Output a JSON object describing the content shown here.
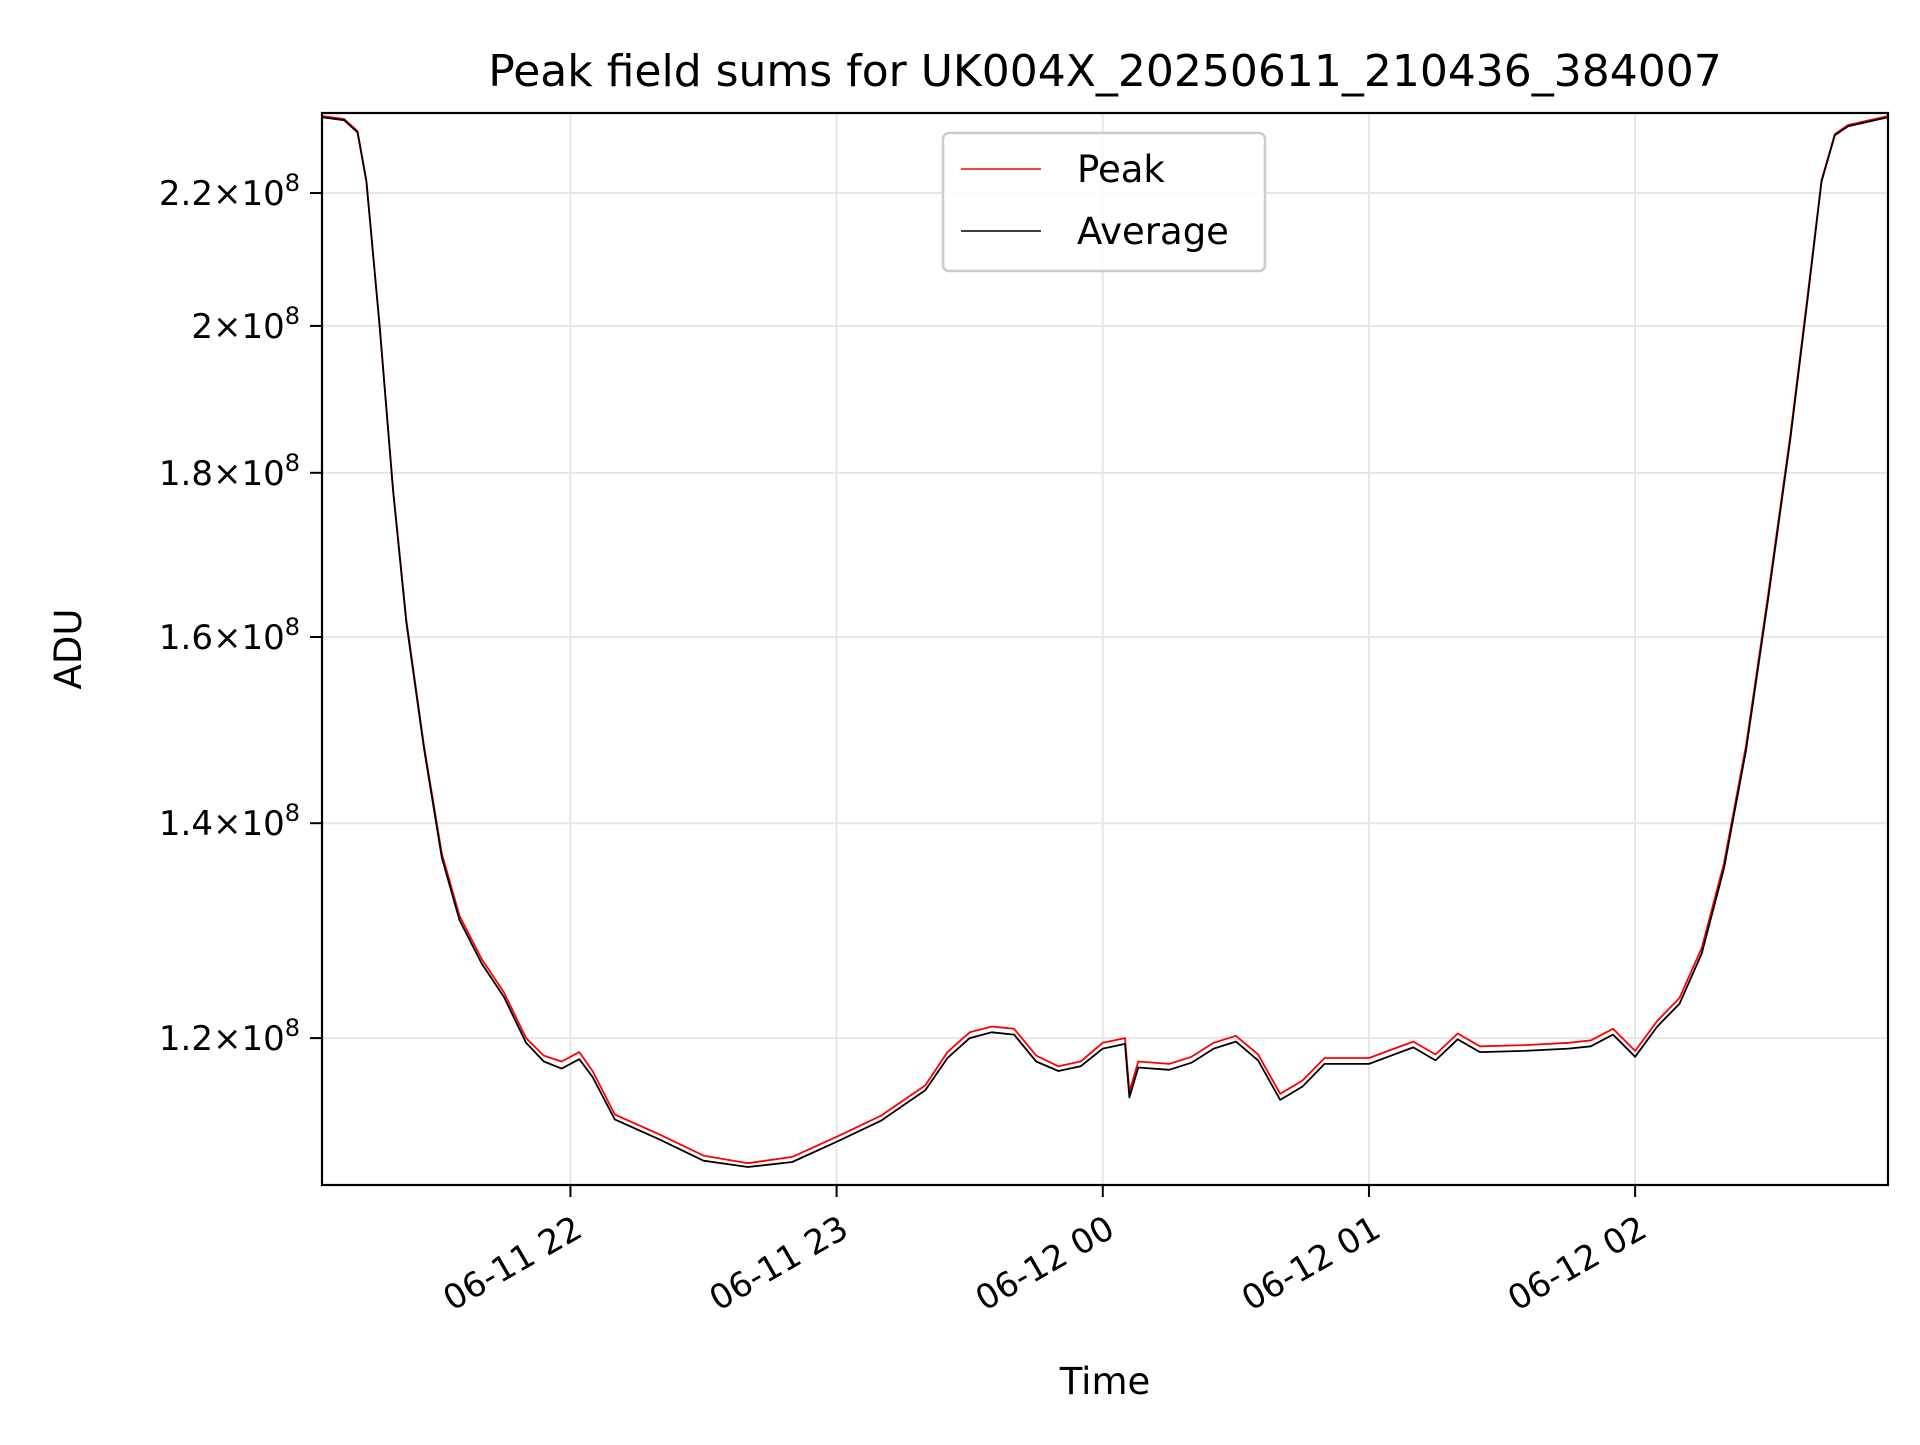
{
  "chart_data": {
    "type": "line",
    "title": "Peak field sums for UK004X_20250611_210436_384007",
    "xlabel": "Time",
    "ylabel": "ADU",
    "y_scale": "log",
    "grid": true,
    "legend_position": "upper center",
    "xlim": [
      "2025-06-11 21:04",
      "2025-06-12 02:57"
    ],
    "ylim": [
      108000000,
      233000000
    ],
    "x_ticks": [
      {
        "value": "2025-06-11 22:00",
        "label": "06-11 22"
      },
      {
        "value": "2025-06-11 23:00",
        "label": "06-11 23"
      },
      {
        "value": "2025-06-12 00:00",
        "label": "06-12 00"
      },
      {
        "value": "2025-06-12 01:00",
        "label": "06-12 01"
      },
      {
        "value": "2025-06-12 02:00",
        "label": "06-12 02"
      }
    ],
    "y_ticks": [
      {
        "value": 120000000,
        "mantissa": "1.2",
        "base": "10",
        "exp": "8"
      },
      {
        "value": 140000000,
        "mantissa": "1.4",
        "base": "10",
        "exp": "8"
      },
      {
        "value": 160000000,
        "mantissa": "1.6",
        "base": "10",
        "exp": "8"
      },
      {
        "value": 180000000,
        "mantissa": "1.8",
        "base": "10",
        "exp": "8"
      },
      {
        "value": 200000000,
        "mantissa": "2",
        "base": "10",
        "exp": "8"
      },
      {
        "value": 220000000,
        "mantissa": "2.2",
        "base": "10",
        "exp": "8"
      }
    ],
    "series": [
      {
        "name": "Peak",
        "color": "#ff0000",
        "points": [
          [
            "2025-06-11 21:04",
            232500000
          ],
          [
            "2025-06-11 21:09",
            232000000
          ],
          [
            "2025-06-11 21:12",
            230000000
          ],
          [
            "2025-06-11 21:14",
            222000000
          ],
          [
            "2025-06-11 21:17",
            200000000
          ],
          [
            "2025-06-11 21:20",
            178000000
          ],
          [
            "2025-06-11 21:23",
            162000000
          ],
          [
            "2025-06-11 21:27",
            148000000
          ],
          [
            "2025-06-11 21:31",
            137000000
          ],
          [
            "2025-06-11 21:35",
            131000000
          ],
          [
            "2025-06-11 21:40",
            127000000
          ],
          [
            "2025-06-11 21:45",
            124000000
          ],
          [
            "2025-06-11 21:50",
            120000000
          ],
          [
            "2025-06-11 21:54",
            118500000
          ],
          [
            "2025-06-11 21:58",
            118000000
          ],
          [
            "2025-06-11 22:02",
            118800000
          ],
          [
            "2025-06-11 22:05",
            117200000
          ],
          [
            "2025-06-11 22:10",
            113600000
          ],
          [
            "2025-06-11 22:20",
            112000000
          ],
          [
            "2025-06-11 22:30",
            110300000
          ],
          [
            "2025-06-11 22:40",
            109700000
          ],
          [
            "2025-06-11 22:50",
            110200000
          ],
          [
            "2025-06-11 23:00",
            111800000
          ],
          [
            "2025-06-11 23:10",
            113500000
          ],
          [
            "2025-06-11 23:20",
            116000000
          ],
          [
            "2025-06-11 23:25",
            118800000
          ],
          [
            "2025-06-11 23:30",
            120500000
          ],
          [
            "2025-06-11 23:35",
            121000000
          ],
          [
            "2025-06-11 23:40",
            120800000
          ],
          [
            "2025-06-11 23:45",
            118500000
          ],
          [
            "2025-06-11 23:50",
            117600000
          ],
          [
            "2025-06-11 23:55",
            118000000
          ],
          [
            "2025-06-12 00:00",
            119600000
          ],
          [
            "2025-06-12 00:05",
            120000000
          ],
          [
            "2025-06-12 00:06",
            115500000
          ],
          [
            "2025-06-12 00:08",
            118000000
          ],
          [
            "2025-06-12 00:15",
            117800000
          ],
          [
            "2025-06-12 00:20",
            118400000
          ],
          [
            "2025-06-12 00:25",
            119600000
          ],
          [
            "2025-06-12 00:30",
            120200000
          ],
          [
            "2025-06-12 00:35",
            118600000
          ],
          [
            "2025-06-12 00:40",
            115300000
          ],
          [
            "2025-06-12 00:45",
            116400000
          ],
          [
            "2025-06-12 00:50",
            118300000
          ],
          [
            "2025-06-12 01:00",
            118300000
          ],
          [
            "2025-06-12 01:10",
            119700000
          ],
          [
            "2025-06-12 01:15",
            118600000
          ],
          [
            "2025-06-12 01:20",
            120400000
          ],
          [
            "2025-06-12 01:25",
            119300000
          ],
          [
            "2025-06-12 01:35",
            119400000
          ],
          [
            "2025-06-12 01:45",
            119600000
          ],
          [
            "2025-06-12 01:50",
            119800000
          ],
          [
            "2025-06-12 01:55",
            120800000
          ],
          [
            "2025-06-12 02:00",
            118900000
          ],
          [
            "2025-06-12 02:05",
            121500000
          ],
          [
            "2025-06-12 02:10",
            123500000
          ],
          [
            "2025-06-12 02:15",
            128000000
          ],
          [
            "2025-06-12 02:20",
            136000000
          ],
          [
            "2025-06-12 02:25",
            148000000
          ],
          [
            "2025-06-12 02:30",
            165000000
          ],
          [
            "2025-06-12 02:35",
            185000000
          ],
          [
            "2025-06-12 02:39",
            205000000
          ],
          [
            "2025-06-12 02:42",
            222000000
          ],
          [
            "2025-06-12 02:45",
            229500000
          ],
          [
            "2025-06-12 02:48",
            231000000
          ],
          [
            "2025-06-12 02:57",
            232500000
          ]
        ]
      },
      {
        "name": "Average",
        "color": "#000000",
        "points": [
          [
            "2025-06-11 21:04",
            232300000
          ],
          [
            "2025-06-11 21:09",
            231800000
          ],
          [
            "2025-06-11 21:12",
            229800000
          ],
          [
            "2025-06-11 21:14",
            221800000
          ],
          [
            "2025-06-11 21:17",
            199800000
          ],
          [
            "2025-06-11 21:20",
            177800000
          ],
          [
            "2025-06-11 21:23",
            161700000
          ],
          [
            "2025-06-11 21:27",
            147700000
          ],
          [
            "2025-06-11 21:31",
            136600000
          ],
          [
            "2025-06-11 21:35",
            130600000
          ],
          [
            "2025-06-11 21:40",
            126600000
          ],
          [
            "2025-06-11 21:45",
            123600000
          ],
          [
            "2025-06-11 21:50",
            119600000
          ],
          [
            "2025-06-11 21:54",
            118000000
          ],
          [
            "2025-06-11 21:58",
            117400000
          ],
          [
            "2025-06-11 22:02",
            118200000
          ],
          [
            "2025-06-11 22:05",
            116700000
          ],
          [
            "2025-06-11 22:10",
            113200000
          ],
          [
            "2025-06-11 22:20",
            111600000
          ],
          [
            "2025-06-11 22:30",
            109900000
          ],
          [
            "2025-06-11 22:40",
            109400000
          ],
          [
            "2025-06-11 22:50",
            109800000
          ],
          [
            "2025-06-11 23:00",
            111400000
          ],
          [
            "2025-06-11 23:10",
            113100000
          ],
          [
            "2025-06-11 23:20",
            115600000
          ],
          [
            "2025-06-11 23:25",
            118300000
          ],
          [
            "2025-06-11 23:30",
            120000000
          ],
          [
            "2025-06-11 23:35",
            120500000
          ],
          [
            "2025-06-11 23:40",
            120300000
          ],
          [
            "2025-06-11 23:45",
            118000000
          ],
          [
            "2025-06-11 23:50",
            117200000
          ],
          [
            "2025-06-11 23:55",
            117600000
          ],
          [
            "2025-06-12 00:00",
            119100000
          ],
          [
            "2025-06-12 00:05",
            119500000
          ],
          [
            "2025-06-12 00:06",
            115000000
          ],
          [
            "2025-06-12 00:08",
            117500000
          ],
          [
            "2025-06-12 00:15",
            117300000
          ],
          [
            "2025-06-12 00:20",
            117900000
          ],
          [
            "2025-06-12 00:25",
            119100000
          ],
          [
            "2025-06-12 00:30",
            119700000
          ],
          [
            "2025-06-12 00:35",
            118100000
          ],
          [
            "2025-06-12 00:40",
            114800000
          ],
          [
            "2025-06-12 00:45",
            115900000
          ],
          [
            "2025-06-12 00:50",
            117800000
          ],
          [
            "2025-06-12 01:00",
            117800000
          ],
          [
            "2025-06-12 01:10",
            119200000
          ],
          [
            "2025-06-12 01:15",
            118100000
          ],
          [
            "2025-06-12 01:20",
            119900000
          ],
          [
            "2025-06-12 01:25",
            118800000
          ],
          [
            "2025-06-12 01:35",
            118900000
          ],
          [
            "2025-06-12 01:45",
            119100000
          ],
          [
            "2025-06-12 01:50",
            119300000
          ],
          [
            "2025-06-12 01:55",
            120300000
          ],
          [
            "2025-06-12 02:00",
            118400000
          ],
          [
            "2025-06-12 02:05",
            121000000
          ],
          [
            "2025-06-12 02:10",
            123000000
          ],
          [
            "2025-06-12 02:15",
            127500000
          ],
          [
            "2025-06-12 02:20",
            135500000
          ],
          [
            "2025-06-12 02:25",
            147500000
          ],
          [
            "2025-06-12 02:30",
            164500000
          ],
          [
            "2025-06-12 02:35",
            184500000
          ],
          [
            "2025-06-12 02:39",
            204500000
          ],
          [
            "2025-06-12 02:42",
            221800000
          ],
          [
            "2025-06-12 02:45",
            229300000
          ],
          [
            "2025-06-12 02:48",
            230800000
          ],
          [
            "2025-06-12 02:57",
            232300000
          ]
        ]
      }
    ]
  }
}
